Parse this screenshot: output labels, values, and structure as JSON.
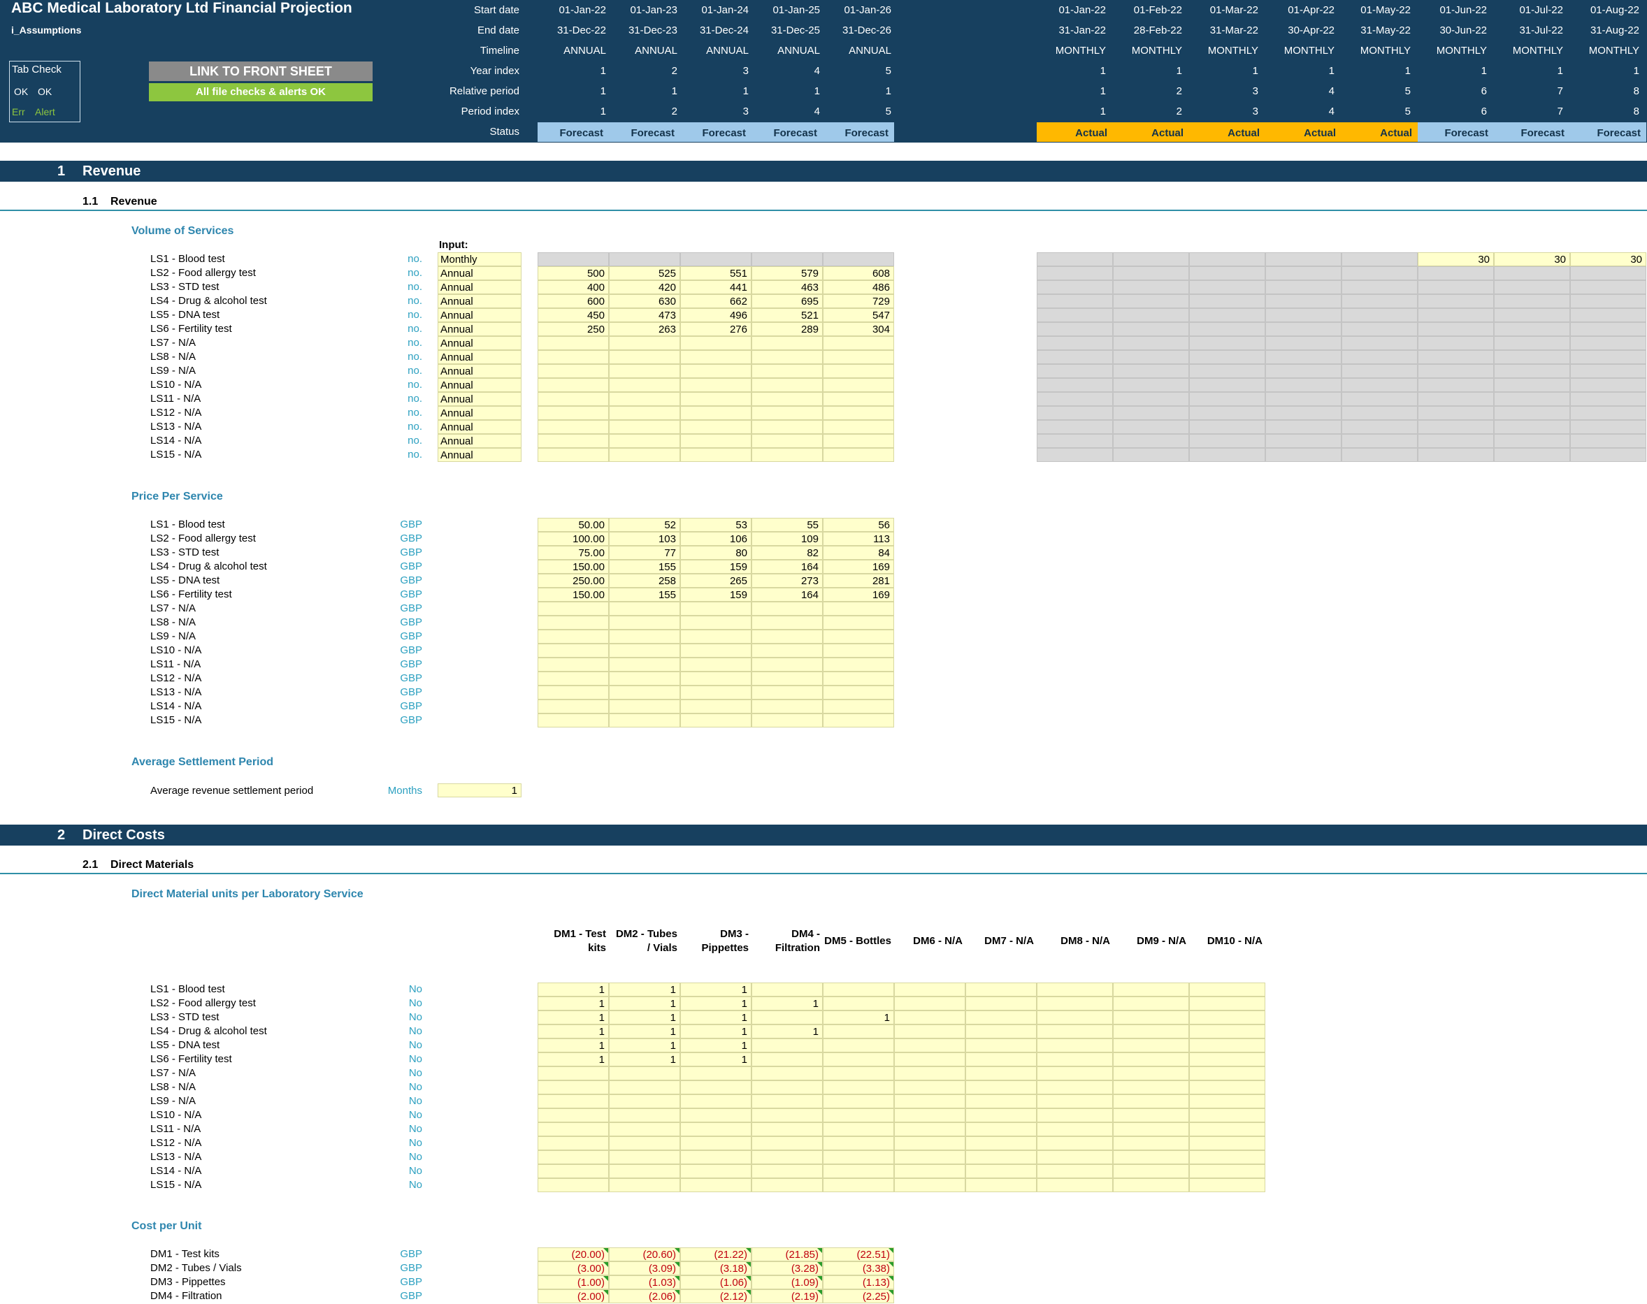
{
  "header": {
    "title": "ABC Medical Laboratory Ltd Financial Projection",
    "sheet": "i_Assumptions",
    "tab_check": {
      "title": "Tab Check",
      "ok1": "OK",
      "ok2": "OK",
      "err": "Err",
      "alert": "Alert"
    },
    "link_button": "LINK TO FRONT SHEET",
    "checks_ok": "All file checks & alerts OK",
    "row_labels": [
      "Start date",
      "End date",
      "Timeline",
      "Year index",
      "Relative period",
      "Period index",
      "Status"
    ],
    "annual_cols": [
      {
        "start": "01-Jan-22",
        "end": "31-Dec-22",
        "timeline": "ANNUAL",
        "year": "1",
        "rel": "1",
        "period": "1",
        "status": "Forecast"
      },
      {
        "start": "01-Jan-23",
        "end": "31-Dec-23",
        "timeline": "ANNUAL",
        "year": "2",
        "rel": "1",
        "period": "2",
        "status": "Forecast"
      },
      {
        "start": "01-Jan-24",
        "end": "31-Dec-24",
        "timeline": "ANNUAL",
        "year": "3",
        "rel": "1",
        "period": "3",
        "status": "Forecast"
      },
      {
        "start": "01-Jan-25",
        "end": "31-Dec-25",
        "timeline": "ANNUAL",
        "year": "4",
        "rel": "1",
        "period": "4",
        "status": "Forecast"
      },
      {
        "start": "01-Jan-26",
        "end": "31-Dec-26",
        "timeline": "ANNUAL",
        "year": "5",
        "rel": "1",
        "period": "5",
        "status": "Forecast"
      }
    ],
    "monthly_cols": [
      {
        "start": "01-Jan-22",
        "end": "31-Jan-22",
        "timeline": "MONTHLY",
        "year": "1",
        "rel": "1",
        "period": "1",
        "status": "Actual"
      },
      {
        "start": "01-Feb-22",
        "end": "28-Feb-22",
        "timeline": "MONTHLY",
        "year": "1",
        "rel": "2",
        "period": "2",
        "status": "Actual"
      },
      {
        "start": "01-Mar-22",
        "end": "31-Mar-22",
        "timeline": "MONTHLY",
        "year": "1",
        "rel": "3",
        "period": "3",
        "status": "Actual"
      },
      {
        "start": "01-Apr-22",
        "end": "30-Apr-22",
        "timeline": "MONTHLY",
        "year": "1",
        "rel": "4",
        "period": "4",
        "status": "Actual"
      },
      {
        "start": "01-May-22",
        "end": "31-May-22",
        "timeline": "MONTHLY",
        "year": "1",
        "rel": "5",
        "period": "5",
        "status": "Actual"
      },
      {
        "start": "01-Jun-22",
        "end": "30-Jun-22",
        "timeline": "MONTHLY",
        "year": "1",
        "rel": "6",
        "period": "6",
        "status": "Forecast"
      },
      {
        "start": "01-Jul-22",
        "end": "31-Jul-22",
        "timeline": "MONTHLY",
        "year": "1",
        "rel": "7",
        "period": "7",
        "status": "Forecast"
      },
      {
        "start": "01-Aug-22",
        "end": "31-Aug-22",
        "timeline": "MONTHLY",
        "year": "1",
        "rel": "8",
        "period": "8",
        "status": "Forecast"
      }
    ]
  },
  "section1": {
    "num": "1",
    "title": "Revenue",
    "sub_num": "1.1",
    "sub_title": "Revenue"
  },
  "volume": {
    "title": "Volume of Services",
    "input_label": "Input:",
    "rows": [
      {
        "label": "LS1 - Blood test",
        "unit": "no.",
        "freq": "Monthly",
        "annual": [
          "",
          "",
          "",
          "",
          ""
        ],
        "monthly": [
          "",
          "",
          "",
          "",
          "",
          "30",
          "30",
          "30"
        ]
      },
      {
        "label": "LS2 - Food allergy test",
        "unit": "no.",
        "freq": "Annual",
        "annual": [
          "500",
          "525",
          "551",
          "579",
          "608"
        ]
      },
      {
        "label": "LS3 - STD test",
        "unit": "no.",
        "freq": "Annual",
        "annual": [
          "400",
          "420",
          "441",
          "463",
          "486"
        ]
      },
      {
        "label": "LS4 - Drug & alcohol test",
        "unit": "no.",
        "freq": "Annual",
        "annual": [
          "600",
          "630",
          "662",
          "695",
          "729"
        ]
      },
      {
        "label": "LS5 - DNA test",
        "unit": "no.",
        "freq": "Annual",
        "annual": [
          "450",
          "473",
          "496",
          "521",
          "547"
        ]
      },
      {
        "label": "LS6 - Fertility test",
        "unit": "no.",
        "freq": "Annual",
        "annual": [
          "250",
          "263",
          "276",
          "289",
          "304"
        ]
      },
      {
        "label": "LS7 - N/A",
        "unit": "no.",
        "freq": "Annual",
        "annual": [
          "",
          "",
          "",
          "",
          ""
        ]
      },
      {
        "label": "LS8 - N/A",
        "unit": "no.",
        "freq": "Annual",
        "annual": [
          "",
          "",
          "",
          "",
          ""
        ]
      },
      {
        "label": "LS9 - N/A",
        "unit": "no.",
        "freq": "Annual",
        "annual": [
          "",
          "",
          "",
          "",
          ""
        ]
      },
      {
        "label": "LS10 - N/A",
        "unit": "no.",
        "freq": "Annual",
        "annual": [
          "",
          "",
          "",
          "",
          ""
        ]
      },
      {
        "label": "LS11 - N/A",
        "unit": "no.",
        "freq": "Annual",
        "annual": [
          "",
          "",
          "",
          "",
          ""
        ]
      },
      {
        "label": "LS12 - N/A",
        "unit": "no.",
        "freq": "Annual",
        "annual": [
          "",
          "",
          "",
          "",
          ""
        ]
      },
      {
        "label": "LS13 - N/A",
        "unit": "no.",
        "freq": "Annual",
        "annual": [
          "",
          "",
          "",
          "",
          ""
        ]
      },
      {
        "label": "LS14 - N/A",
        "unit": "no.",
        "freq": "Annual",
        "annual": [
          "",
          "",
          "",
          "",
          ""
        ]
      },
      {
        "label": "LS15 - N/A",
        "unit": "no.",
        "freq": "Annual",
        "annual": [
          "",
          "",
          "",
          "",
          ""
        ]
      }
    ]
  },
  "price": {
    "title": "Price Per Service",
    "rows": [
      {
        "label": "LS1 - Blood test",
        "unit": "GBP",
        "annual": [
          "50.00",
          "52",
          "53",
          "55",
          "56"
        ]
      },
      {
        "label": "LS2 - Food allergy test",
        "unit": "GBP",
        "annual": [
          "100.00",
          "103",
          "106",
          "109",
          "113"
        ]
      },
      {
        "label": "LS3 - STD test",
        "unit": "GBP",
        "annual": [
          "75.00",
          "77",
          "80",
          "82",
          "84"
        ]
      },
      {
        "label": "LS4 - Drug & alcohol test",
        "unit": "GBP",
        "annual": [
          "150.00",
          "155",
          "159",
          "164",
          "169"
        ]
      },
      {
        "label": "LS5 - DNA test",
        "unit": "GBP",
        "annual": [
          "250.00",
          "258",
          "265",
          "273",
          "281"
        ]
      },
      {
        "label": "LS6 - Fertility test",
        "unit": "GBP",
        "annual": [
          "150.00",
          "155",
          "159",
          "164",
          "169"
        ]
      },
      {
        "label": "LS7 - N/A",
        "unit": "GBP",
        "annual": [
          "",
          "",
          "",
          "",
          ""
        ]
      },
      {
        "label": "LS8 - N/A",
        "unit": "GBP",
        "annual": [
          "",
          "",
          "",
          "",
          ""
        ]
      },
      {
        "label": "LS9 - N/A",
        "unit": "GBP",
        "annual": [
          "",
          "",
          "",
          "",
          ""
        ]
      },
      {
        "label": "LS10 - N/A",
        "unit": "GBP",
        "annual": [
          "",
          "",
          "",
          "",
          ""
        ]
      },
      {
        "label": "LS11 - N/A",
        "unit": "GBP",
        "annual": [
          "",
          "",
          "",
          "",
          ""
        ]
      },
      {
        "label": "LS12 - N/A",
        "unit": "GBP",
        "annual": [
          "",
          "",
          "",
          "",
          ""
        ]
      },
      {
        "label": "LS13 - N/A",
        "unit": "GBP",
        "annual": [
          "",
          "",
          "",
          "",
          ""
        ]
      },
      {
        "label": "LS14 - N/A",
        "unit": "GBP",
        "annual": [
          "",
          "",
          "",
          "",
          ""
        ]
      },
      {
        "label": "LS15 - N/A",
        "unit": "GBP",
        "annual": [
          "",
          "",
          "",
          "",
          ""
        ]
      }
    ]
  },
  "settlement": {
    "title": "Average Settlement Period",
    "label": "Average revenue settlement period",
    "unit": "Months",
    "value": "1"
  },
  "section2": {
    "num": "2",
    "title": "Direct Costs",
    "sub_num": "2.1",
    "sub_title": "Direct Materials"
  },
  "dm_units": {
    "title": "Direct Material units per Laboratory Service",
    "headers": [
      [
        "DM1 - Test",
        "kits"
      ],
      [
        "DM2 - Tubes",
        "/ Vials"
      ],
      [
        "DM3 -",
        "Pippettes"
      ],
      [
        "DM4 -",
        "Filtration"
      ],
      [
        "DM5 - Bottles"
      ],
      [
        "DM6 - N/A"
      ],
      [
        "DM7 - N/A"
      ],
      [
        "DM8 - N/A"
      ],
      [
        "DM9 - N/A"
      ],
      [
        "DM10 - N/A"
      ]
    ],
    "rows": [
      {
        "label": "LS1 - Blood test",
        "unit": "No",
        "values": [
          "1",
          "1",
          "1",
          "",
          "",
          "",
          "",
          "",
          "",
          ""
        ]
      },
      {
        "label": "LS2 - Food allergy test",
        "unit": "No",
        "values": [
          "1",
          "1",
          "1",
          "1",
          "",
          "",
          "",
          "",
          "",
          ""
        ]
      },
      {
        "label": "LS3 - STD test",
        "unit": "No",
        "values": [
          "1",
          "1",
          "1",
          "",
          "1",
          "",
          "",
          "",
          "",
          ""
        ]
      },
      {
        "label": "LS4 - Drug & alcohol test",
        "unit": "No",
        "values": [
          "1",
          "1",
          "1",
          "1",
          "",
          "",
          "",
          "",
          "",
          ""
        ]
      },
      {
        "label": "LS5 - DNA test",
        "unit": "No",
        "values": [
          "1",
          "1",
          "1",
          "",
          "",
          "",
          "",
          "",
          "",
          ""
        ]
      },
      {
        "label": "LS6 - Fertility test",
        "unit": "No",
        "values": [
          "1",
          "1",
          "1",
          "",
          "",
          "",
          "",
          "",
          "",
          ""
        ]
      },
      {
        "label": "LS7 - N/A",
        "unit": "No",
        "values": [
          "",
          "",
          "",
          "",
          "",
          "",
          "",
          "",
          "",
          ""
        ]
      },
      {
        "label": "LS8 - N/A",
        "unit": "No",
        "values": [
          "",
          "",
          "",
          "",
          "",
          "",
          "",
          "",
          "",
          ""
        ]
      },
      {
        "label": "LS9 - N/A",
        "unit": "No",
        "values": [
          "",
          "",
          "",
          "",
          "",
          "",
          "",
          "",
          "",
          ""
        ]
      },
      {
        "label": "LS10 - N/A",
        "unit": "No",
        "values": [
          "",
          "",
          "",
          "",
          "",
          "",
          "",
          "",
          "",
          ""
        ]
      },
      {
        "label": "LS11 - N/A",
        "unit": "No",
        "values": [
          "",
          "",
          "",
          "",
          "",
          "",
          "",
          "",
          "",
          ""
        ]
      },
      {
        "label": "LS12 - N/A",
        "unit": "No",
        "values": [
          "",
          "",
          "",
          "",
          "",
          "",
          "",
          "",
          "",
          ""
        ]
      },
      {
        "label": "LS13 - N/A",
        "unit": "No",
        "values": [
          "",
          "",
          "",
          "",
          "",
          "",
          "",
          "",
          "",
          ""
        ]
      },
      {
        "label": "LS14 - N/A",
        "unit": "No",
        "values": [
          "",
          "",
          "",
          "",
          "",
          "",
          "",
          "",
          "",
          ""
        ]
      },
      {
        "label": "LS15 - N/A",
        "unit": "No",
        "values": [
          "",
          "",
          "",
          "",
          "",
          "",
          "",
          "",
          "",
          ""
        ]
      }
    ]
  },
  "cost_unit": {
    "title": "Cost per Unit",
    "rows": [
      {
        "label": "DM1 - Test kits",
        "unit": "GBP",
        "annual": [
          "(20.00)",
          "(20.60)",
          "(21.22)",
          "(21.85)",
          "(22.51)"
        ]
      },
      {
        "label": "DM2 - Tubes / Vials",
        "unit": "GBP",
        "annual": [
          "(3.00)",
          "(3.09)",
          "(3.18)",
          "(3.28)",
          "(3.38)"
        ]
      },
      {
        "label": "DM3 - Pippettes",
        "unit": "GBP",
        "annual": [
          "(1.00)",
          "(1.03)",
          "(1.06)",
          "(1.09)",
          "(1.13)"
        ]
      },
      {
        "label": "DM4 - Filtration",
        "unit": "GBP",
        "annual": [
          "(2.00)",
          "(2.06)",
          "(2.12)",
          "(2.19)",
          "(2.25)"
        ]
      }
    ]
  },
  "colors": {
    "navy": "#17405f",
    "teal": "#2e86ae",
    "input": "#ffffcc",
    "forecast": "#9fc9ea",
    "actual": "#ffb800",
    "ok_green": "#8dc63f"
  }
}
